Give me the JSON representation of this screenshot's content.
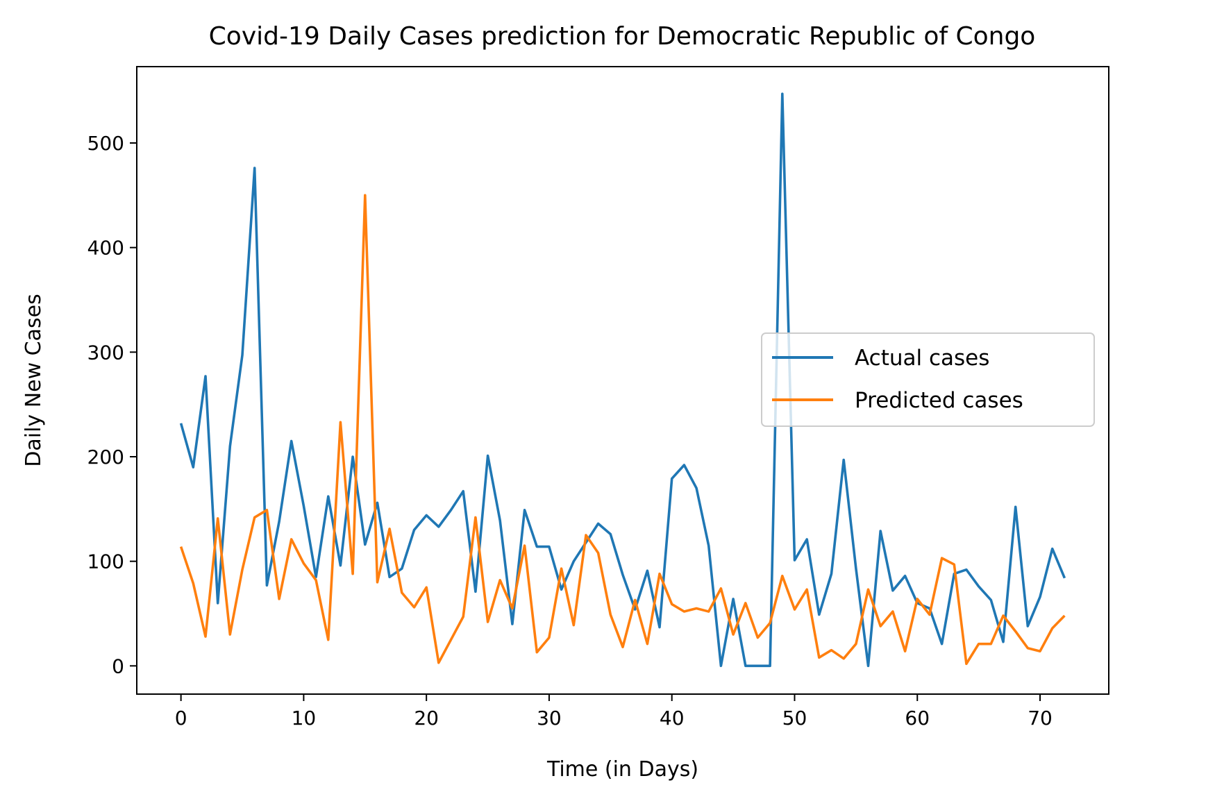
{
  "chart_data": {
    "type": "line",
    "title": "Covid-19 Daily Cases prediction for Democratic Republic of Congo",
    "xlabel": "Time (in Days)",
    "ylabel": "Daily New Cases",
    "xlim": [
      -3.6,
      75.6
    ],
    "ylim": [
      -27,
      573
    ],
    "xticks": [
      0,
      10,
      20,
      30,
      40,
      50,
      60,
      70
    ],
    "yticks": [
      0,
      100,
      200,
      300,
      400,
      500
    ],
    "grid": false,
    "legend_position": "center-right",
    "series": [
      {
        "name": "Actual cases",
        "color": "#1f77b4",
        "values": [
          232,
          190,
          277,
          60,
          210,
          297,
          476,
          77,
          138,
          215,
          153,
          85,
          162,
          96,
          200,
          116,
          156,
          85,
          93,
          130,
          144,
          133,
          149,
          167,
          71,
          201,
          139,
          40,
          149,
          114,
          114,
          73,
          100,
          118,
          136,
          126,
          87,
          54,
          91,
          37,
          179,
          192,
          170,
          115,
          0,
          64,
          0,
          0,
          0,
          547,
          101,
          121,
          49,
          88,
          197,
          93,
          0,
          129,
          72,
          86,
          60,
          55,
          21,
          88,
          92,
          76,
          63,
          23,
          152,
          38,
          66,
          112,
          84
        ]
      },
      {
        "name": "Predicted cases",
        "color": "#ff7f0e",
        "values": [
          114,
          79,
          28,
          141,
          30,
          92,
          142,
          149,
          64,
          121,
          98,
          82,
          25,
          233,
          88,
          450,
          80,
          131,
          70,
          56,
          75,
          3,
          25,
          47,
          142,
          42,
          82,
          55,
          115,
          13,
          27,
          93,
          39,
          125,
          108,
          49,
          18,
          63,
          21,
          88,
          59,
          52,
          55,
          52,
          74,
          30,
          60,
          27,
          41,
          86,
          54,
          73,
          8,
          15,
          7,
          21,
          73,
          38,
          52,
          14,
          64,
          49,
          103,
          97,
          2,
          21,
          21,
          48,
          33,
          17,
          14,
          36,
          48
        ]
      }
    ]
  }
}
